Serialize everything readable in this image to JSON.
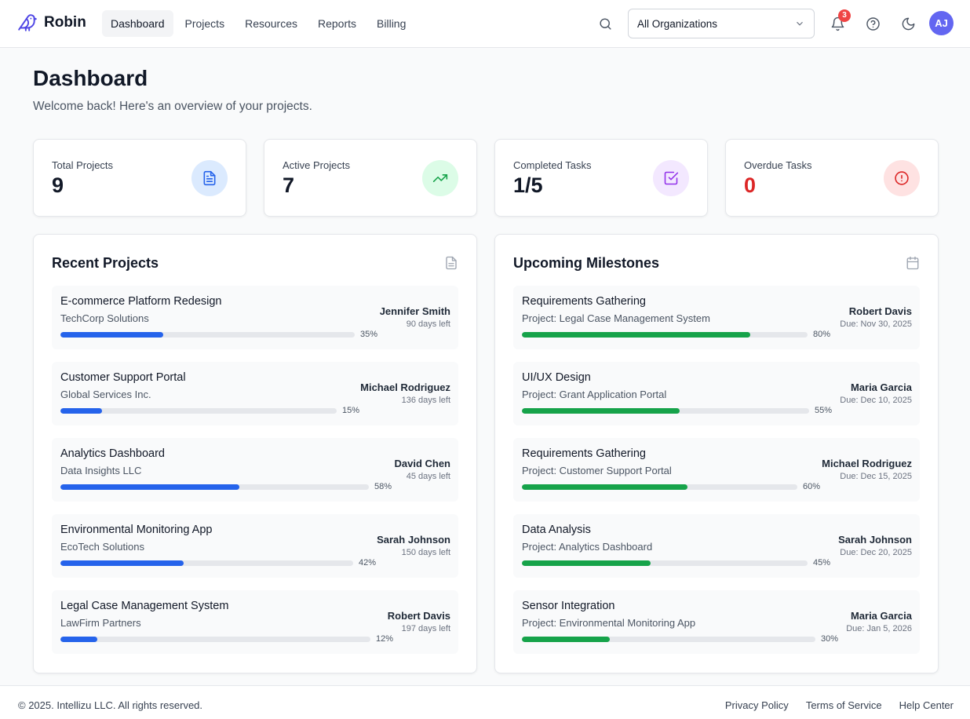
{
  "brand": {
    "name": "Robin",
    "accent": "#4f46e5"
  },
  "nav": {
    "items": [
      {
        "label": "Dashboard",
        "active": true
      },
      {
        "label": "Projects"
      },
      {
        "label": "Resources"
      },
      {
        "label": "Reports"
      },
      {
        "label": "Billing"
      }
    ]
  },
  "header": {
    "org_select": "All Organizations",
    "notifications_count": "3",
    "user_initials": "AJ",
    "icons": [
      "search-icon",
      "bell-icon",
      "help-icon",
      "moon-icon",
      "chevron-down-icon"
    ]
  },
  "page": {
    "title": "Dashboard",
    "subtitle": "Welcome back! Here's an overview of your projects."
  },
  "stats": [
    {
      "label": "Total Projects",
      "value": "9",
      "icon": "document-icon",
      "value_color": "#111827",
      "icon_bg": "#dbeafe",
      "icon_color": "#2563eb"
    },
    {
      "label": "Active Projects",
      "value": "7",
      "icon": "trending-up-icon",
      "value_color": "#111827",
      "icon_bg": "#dcfce7",
      "icon_color": "#16a34a"
    },
    {
      "label": "Completed Tasks",
      "value": "1/5",
      "icon": "checkbox-icon",
      "value_color": "#111827",
      "icon_bg": "#f3e8ff",
      "icon_color": "#9333ea"
    },
    {
      "label": "Overdue Tasks",
      "value": "0",
      "icon": "alert-circle-icon",
      "value_color": "#dc2626",
      "icon_bg": "#fee2e2",
      "icon_color": "#dc2626"
    }
  ],
  "recent_projects": {
    "title": "Recent Projects",
    "icon": "file-icon",
    "bar_color": "#2563eb",
    "items": [
      {
        "name": "E-commerce Platform Redesign",
        "client": "TechCorp Solutions",
        "owner": "Jennifer Smith",
        "meta": "90 days left",
        "progress": 35,
        "progress_label": "35%"
      },
      {
        "name": "Customer Support Portal",
        "client": "Global Services Inc.",
        "owner": "Michael Rodriguez",
        "meta": "136 days left",
        "progress": 15,
        "progress_label": "15%"
      },
      {
        "name": "Analytics Dashboard",
        "client": "Data Insights LLC",
        "owner": "David Chen",
        "meta": "45 days left",
        "progress": 58,
        "progress_label": "58%"
      },
      {
        "name": "Environmental Monitoring App",
        "client": "EcoTech Solutions",
        "owner": "Sarah Johnson",
        "meta": "150 days left",
        "progress": 42,
        "progress_label": "42%"
      },
      {
        "name": "Legal Case Management System",
        "client": "LawFirm Partners",
        "owner": "Robert Davis",
        "meta": "197 days left",
        "progress": 12,
        "progress_label": "12%"
      }
    ]
  },
  "milestones": {
    "title": "Upcoming Milestones",
    "icon": "calendar-icon",
    "bar_color": "#16a34a",
    "items": [
      {
        "name": "Requirements Gathering",
        "project": "Project: Legal Case Management System",
        "owner": "Robert Davis",
        "meta": "Due: Nov 30, 2025",
        "progress": 80,
        "progress_label": "80%"
      },
      {
        "name": "UI/UX Design",
        "project": "Project: Grant Application Portal",
        "owner": "Maria Garcia",
        "meta": "Due: Dec 10, 2025",
        "progress": 55,
        "progress_label": "55%"
      },
      {
        "name": "Requirements Gathering",
        "project": "Project: Customer Support Portal",
        "owner": "Michael Rodriguez",
        "meta": "Due: Dec 15, 2025",
        "progress": 60,
        "progress_label": "60%"
      },
      {
        "name": "Data Analysis",
        "project": "Project: Analytics Dashboard",
        "owner": "Sarah Johnson",
        "meta": "Due: Dec 20, 2025",
        "progress": 45,
        "progress_label": "45%"
      },
      {
        "name": "Sensor Integration",
        "project": "Project: Environmental Monitoring App",
        "owner": "Maria Garcia",
        "meta": "Due: Jan 5, 2026",
        "progress": 30,
        "progress_label": "30%"
      }
    ]
  },
  "footer": {
    "copyright": "© 2025. Intellizu LLC. All rights reserved.",
    "links": [
      "Privacy Policy",
      "Terms of Service",
      "Help Center"
    ]
  }
}
